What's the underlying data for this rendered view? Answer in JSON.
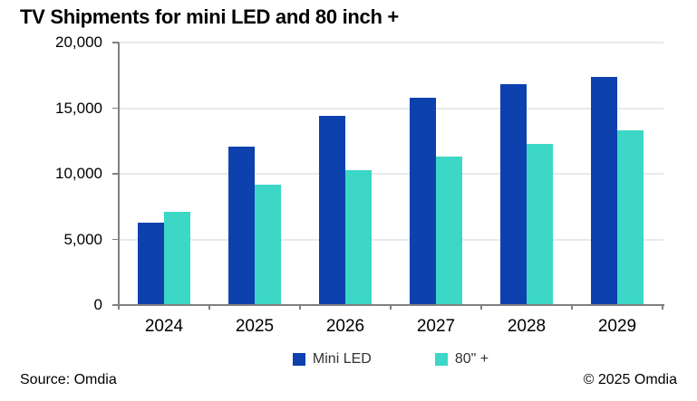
{
  "title": "TV Shipments for mini LED and 80 inch +",
  "footer": {
    "source": "Source: Omdia",
    "copyright": "© 2025 Omdia"
  },
  "colors": {
    "mini_led": "#0c41ae",
    "eighty_inch": "#3cd7c6",
    "gridline": "#e9e9e9",
    "axis": "#808080",
    "text": "#000000",
    "legend_text": "#333333"
  },
  "chart_data": {
    "type": "bar",
    "title": "TV Shipments for mini LED and 80 inch +",
    "categories": [
      "2024",
      "2025",
      "2026",
      "2027",
      "2028",
      "2029"
    ],
    "series": [
      {
        "name": "Mini LED",
        "color": "#0c41ae",
        "values": [
          6300,
          12100,
          14400,
          15800,
          16800,
          17400
        ]
      },
      {
        "name": "80\" +",
        "color": "#3cd7c6",
        "values": [
          7100,
          9200,
          10300,
          11300,
          12300,
          13300
        ]
      }
    ],
    "xlabel": "",
    "ylabel": "",
    "ylim": [
      0,
      20000
    ],
    "yticks": [
      0,
      5000,
      10000,
      15000,
      20000
    ],
    "ytick_labels": [
      "0",
      "5,000",
      "10,000",
      "15,000",
      "20,000"
    ],
    "grid": true,
    "legend_position": "bottom"
  }
}
